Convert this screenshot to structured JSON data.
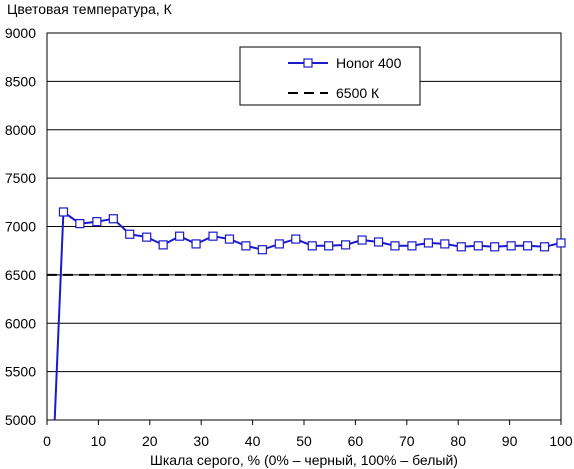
{
  "chart_data": {
    "type": "line",
    "title": "",
    "ylabel": "Цветовая температура, К",
    "xlabel": "Шкала серого, % (0% – черный, 100% – белый)",
    "xlim": [
      0,
      100
    ],
    "ylim": [
      5000,
      9000
    ],
    "x_ticks": [
      0,
      10,
      20,
      30,
      40,
      50,
      60,
      70,
      80,
      90,
      100
    ],
    "y_ticks": [
      5000,
      5500,
      6000,
      6500,
      7000,
      7500,
      8000,
      8500,
      9000
    ],
    "grid": "horizontal",
    "legend_position": "top-right",
    "series": [
      {
        "name": "Honor 400",
        "color": "#1a1acc",
        "marker": "square",
        "x": [
          1.5,
          3.2,
          6.4,
          9.7,
          12.9,
          16.1,
          19.4,
          22.6,
          25.8,
          29.0,
          32.3,
          35.5,
          38.7,
          41.9,
          45.2,
          48.4,
          51.6,
          54.8,
          58.1,
          61.3,
          64.5,
          67.7,
          71.0,
          74.2,
          77.4,
          80.6,
          83.9,
          87.1,
          90.3,
          93.5,
          96.8,
          100
        ],
        "y": [
          5000,
          7150,
          7030,
          7050,
          7080,
          6920,
          6890,
          6810,
          6900,
          6820,
          6900,
          6870,
          6800,
          6760,
          6820,
          6870,
          6800,
          6800,
          6810,
          6860,
          6840,
          6800,
          6800,
          6830,
          6820,
          6790,
          6800,
          6790,
          6800,
          6800,
          6790,
          6830
        ]
      },
      {
        "name": "6500 К",
        "color": "#000000",
        "style": "dashed",
        "x": [
          0,
          100
        ],
        "y": [
          6500,
          6500
        ]
      }
    ]
  }
}
